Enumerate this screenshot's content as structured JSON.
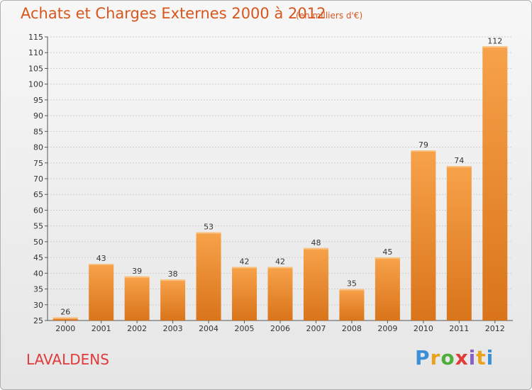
{
  "chart_data": {
    "type": "bar",
    "title": "Achats et Charges Externes 2000 à 2012",
    "unit_label": "(en milliers d'€)",
    "categories": [
      "2000",
      "2001",
      "2002",
      "2003",
      "2004",
      "2005",
      "2006",
      "2007",
      "2008",
      "2009",
      "2010",
      "2011",
      "2012"
    ],
    "values": [
      26,
      43,
      39,
      38,
      53,
      42,
      42,
      48,
      35,
      45,
      79,
      74,
      112
    ],
    "ylim": [
      25,
      115
    ],
    "yticks": [
      25,
      30,
      35,
      40,
      45,
      50,
      55,
      60,
      65,
      70,
      75,
      80,
      85,
      90,
      95,
      100,
      105,
      110,
      115
    ],
    "xlabel": "",
    "ylabel": "",
    "grid": true,
    "bar_color": "#f39b3c"
  },
  "footer": {
    "commune": "LAVALDENS",
    "brand": "Proxiti"
  }
}
